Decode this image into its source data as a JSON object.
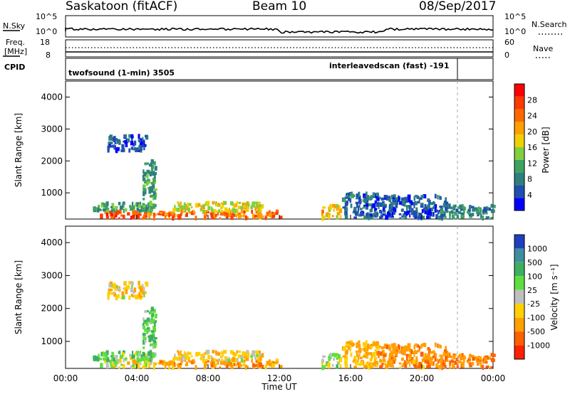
{
  "header": {
    "station": "Saskatoon (fitACF)",
    "beam": "Beam 10",
    "date": "08/Sep/2017"
  },
  "noise_panel": {
    "left_label": "N.Sky",
    "right_label": "N.Search",
    "left_ticks": [
      "10^5",
      "10^0"
    ],
    "right_ticks": [
      "10^5",
      "10^0"
    ]
  },
  "freq_panel": {
    "left_label_1": "Freq.",
    "left_label_2": "[MHz]",
    "left_ticks": [
      "18",
      "8"
    ],
    "right_label": "Nave",
    "right_ticks": [
      "60",
      "0"
    ]
  },
  "cpid_panel": {
    "label": "CPID",
    "mode_1": "twofsound (1-min) 3505",
    "mode_2": "interleavedscan (fast) -191"
  },
  "x_axis": {
    "ticks": [
      "00:00",
      "04:00",
      "08:00",
      "12:00",
      "16:00",
      "20:00",
      "00:00"
    ],
    "label": "Time UT"
  },
  "power_panel": {
    "ylabel": "Slant Range [km]",
    "yticks": [
      "1000",
      "2000",
      "3000",
      "4000"
    ],
    "colorbar_label": "Power [dB]",
    "colorbar_ticks": [
      "4",
      "8",
      "12",
      "16",
      "20",
      "24",
      "28"
    ],
    "colors": [
      "#0000ff",
      "#1f4faf",
      "#2f7f7f",
      "#3fa25f",
      "#7fcf3f",
      "#f0d000",
      "#ffa000",
      "#ff6a00",
      "#ff3a00",
      "#ff0000"
    ]
  },
  "velocity_panel": {
    "ylabel": "Slant Range [km]",
    "yticks": [
      "1000",
      "2000",
      "3000",
      "4000"
    ],
    "colorbar_label": "Velocity [m s⁻¹]",
    "colorbar_ticks": [
      "1000",
      "500",
      "100",
      "25",
      "-25",
      "-100",
      "-500",
      "-1000"
    ],
    "colors": [
      "#1f3fbf",
      "#3f8f9f",
      "#3faf5f",
      "#5fdf3f",
      "#bfbfbf",
      "#ffd000",
      "#ffa000",
      "#ff6000",
      "#ff2000"
    ]
  },
  "chart_data": {
    "type": "heatmap",
    "x_range_hours": [
      0,
      24
    ],
    "y_range_km": [
      180,
      4500
    ],
    "transition_time_hours": 22,
    "clusters": [
      {
        "t0": 1.9,
        "t1": 5.0,
        "r0": 200,
        "r1": 420,
        "power": 26,
        "velocity": 20
      },
      {
        "t0": 1.5,
        "t1": 5.0,
        "r0": 420,
        "r1": 700,
        "power": 12,
        "velocity": 80
      },
      {
        "t0": 5.0,
        "t1": 12.0,
        "r0": 200,
        "r1": 420,
        "power": 25,
        "velocity": -60
      },
      {
        "t0": 6.0,
        "t1": 11.0,
        "r0": 420,
        "r1": 700,
        "power": 18,
        "velocity": 0
      },
      {
        "t0": 14.3,
        "t1": 15.5,
        "r0": 200,
        "r1": 600,
        "power": 20,
        "velocity": 60
      },
      {
        "t0": 15.5,
        "t1": 17.5,
        "r0": 200,
        "r1": 1000,
        "power": 8,
        "velocity": -40
      },
      {
        "t0": 17.5,
        "t1": 21.5,
        "r0": 200,
        "r1": 900,
        "power": 7,
        "velocity": -80
      },
      {
        "t0": 21.0,
        "t1": 24.0,
        "r0": 200,
        "r1": 600,
        "power": 10,
        "velocity": -100
      },
      {
        "t0": 2.3,
        "t1": 4.5,
        "r0": 2300,
        "r1": 2800,
        "power": 6,
        "velocity": 0
      },
      {
        "t0": 4.3,
        "t1": 5.0,
        "r0": 800,
        "r1": 2000,
        "power": 12,
        "velocity": 100
      }
    ]
  }
}
